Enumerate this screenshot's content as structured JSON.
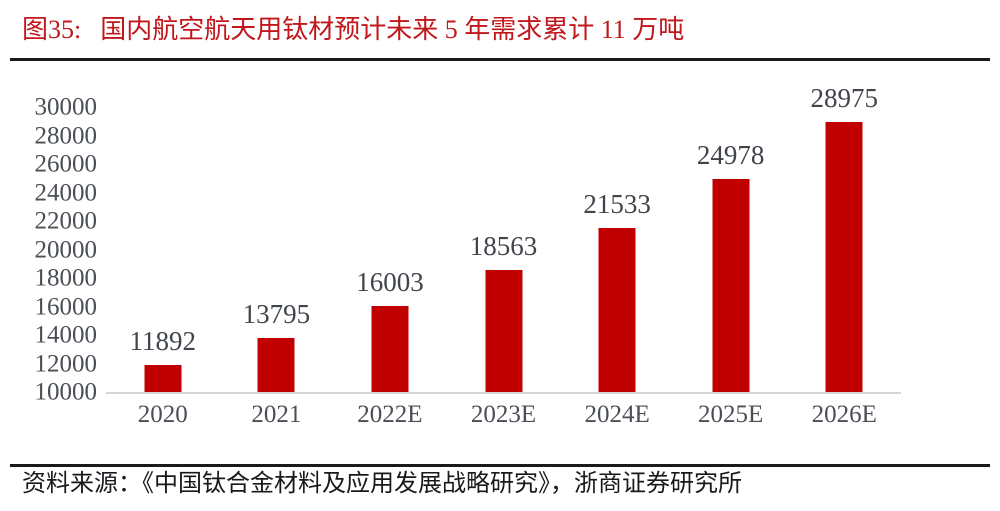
{
  "figure": {
    "label": "图35:",
    "title": "国内航空航天用钛材预计未来 5 年需求累计 11 万吨",
    "source": "资料来源：《中国钛合金材料及应用发展战略研究》，浙商证券研究所"
  },
  "colors": {
    "bar": "#c00000",
    "title_text": "#c1171c",
    "axis_label": "#4a4e55",
    "value_label": "#40454c",
    "axis_line": "#d6d6d6",
    "rule": "#1a1a1a",
    "source_text": "#17191d",
    "background": "#ffffff"
  },
  "chart_data": {
    "type": "bar",
    "title": "国内航空航天用钛材预计未来 5 年需求累计 11 万吨",
    "categories": [
      "2020",
      "2021",
      "2022E",
      "2023E",
      "2024E",
      "2025E",
      "2026E"
    ],
    "values": [
      11892,
      13795,
      16003,
      18563,
      21533,
      24978,
      28975
    ],
    "data_labels": [
      11892,
      13795,
      16003,
      18563,
      21533,
      24978,
      28975
    ],
    "xlabel": "",
    "ylabel": "",
    "ylim": [
      10000,
      30000
    ],
    "yticks": [
      10000,
      12000,
      14000,
      16000,
      18000,
      20000,
      22000,
      24000,
      26000,
      28000,
      30000
    ],
    "grid": false,
    "legend": null,
    "bar_color": "#c00000"
  }
}
